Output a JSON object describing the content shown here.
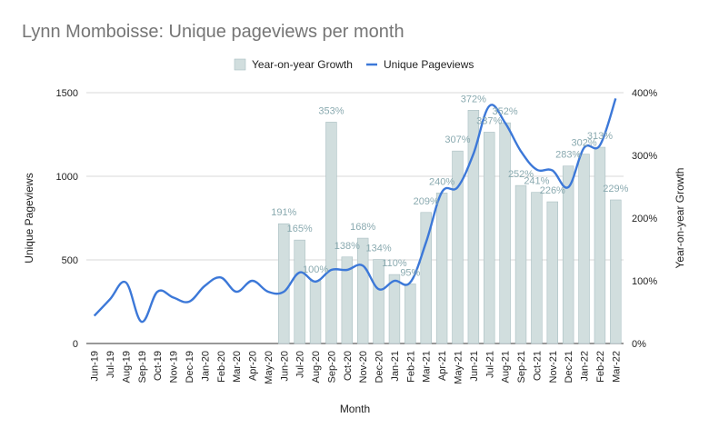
{
  "chart_data": {
    "type": "bar",
    "title": "Lynn Momboisse: Unique pageviews per month",
    "xlabel": "Month",
    "ylabel": "Unique Pageviews",
    "y2label": "Year-on-year Growth",
    "ylim": [
      0,
      1500
    ],
    "y2lim": [
      0,
      400
    ],
    "yticks": [
      "0",
      "500",
      "1000",
      "1500"
    ],
    "y2ticks": [
      "0%",
      "100%",
      "200%",
      "300%",
      "400%"
    ],
    "legend_position": "top",
    "grid": true,
    "categories": [
      "Jun-19",
      "Jul-19",
      "Aug-19",
      "Sep-19",
      "Oct-19",
      "Nov-19",
      "Dec-19",
      "Jan-20",
      "Feb-20",
      "Mar-20",
      "Apr-20",
      "May-20",
      "Jun-20",
      "Jul-20",
      "Aug-20",
      "Sep-20",
      "Oct-20",
      "Nov-20",
      "Dec-20",
      "Jan-21",
      "Feb-21",
      "Mar-21",
      "Apr-21",
      "May-21",
      "Jun-21",
      "Jul-21",
      "Aug-21",
      "Sep-21",
      "Oct-21",
      "Nov-21",
      "Dec-21",
      "Jan-22",
      "Feb-22",
      "Mar-22"
    ],
    "series": [
      {
        "name": "Year-on-year Growth",
        "type": "bar",
        "axis": "right",
        "color": "#d1dede",
        "values": [
          null,
          null,
          null,
          null,
          null,
          null,
          null,
          null,
          null,
          null,
          null,
          null,
          191,
          165,
          100,
          353,
          138,
          168,
          134,
          110,
          95,
          209,
          240,
          307,
          372,
          337,
          352,
          252,
          241,
          226,
          283,
          302,
          313,
          229
        ],
        "labels": [
          "",
          "",
          "",
          "",
          "",
          "",
          "",
          "",
          "",
          "",
          "",
          "",
          "191%",
          "165%",
          "100%",
          "353%",
          "138%",
          "168%",
          "134%",
          "110%",
          "95%",
          "209%",
          "240%",
          "307%",
          "372%",
          "337%",
          "352%",
          "252%",
          "241%",
          "226%",
          "283%",
          "302%",
          "313%",
          "229%"
        ]
      },
      {
        "name": "Unique Pageviews",
        "type": "line",
        "axis": "left",
        "color": "#3c78d8",
        "values": [
          165,
          265,
          365,
          130,
          310,
          275,
          250,
          345,
          395,
          310,
          375,
          310,
          310,
          425,
          370,
          440,
          440,
          465,
          325,
          375,
          365,
          605,
          905,
          935,
          1135,
          1420,
          1320,
          1150,
          1040,
          1035,
          935,
          1170,
          1185,
          1465
        ]
      }
    ]
  }
}
